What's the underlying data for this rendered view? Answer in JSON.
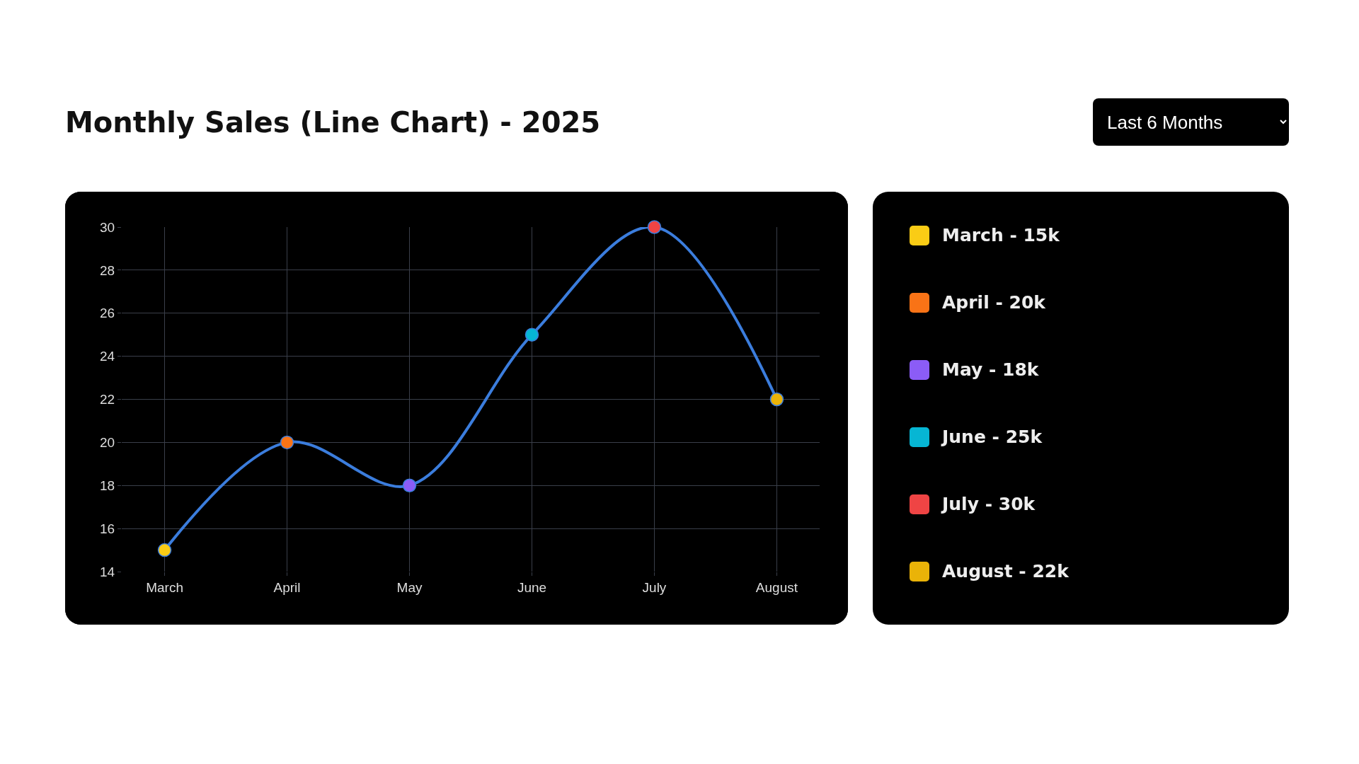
{
  "chart_data": [
    {
      "type": "line",
      "title": "Monthly Sales (Line Chart) - 2025",
      "annotations": [
        "Last 6 Months"
      ],
      "categories": [
        "March",
        "April",
        "May",
        "June",
        "July",
        "August"
      ],
      "series": [
        {
          "color": "#3b7ddd",
          "colors": [
            "#facc15",
            "#f97316",
            "#8b5cf6",
            "#06b6d4",
            "#ef4444",
            "#eab308"
          ],
          "values": [
            15,
            20,
            18,
            25,
            30,
            22
          ]
        }
      ],
      "ylim": [
        14,
        30
      ],
      "yticks": [
        14,
        16,
        18,
        20,
        22,
        24,
        26,
        28,
        30
      ],
      "grid": true,
      "legend": false,
      "marker": "circle",
      "line_style": "solid"
    },
    {
      "type": "other",
      "annotations": [
        "March - 15k",
        "April - 20k",
        "May - 18k",
        "June - 25k",
        "July - 30k",
        "August - 22k"
      ],
      "colors": [
        "#facc15",
        "#f97316",
        "#8b5cf6",
        "#06b6d4",
        "#ef4444",
        "#eab308"
      ]
    }
  ]
}
